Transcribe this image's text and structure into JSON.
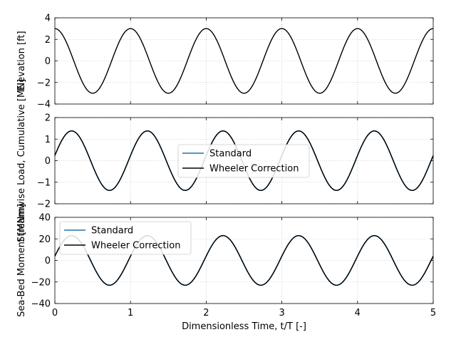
{
  "chart_data": [
    {
      "type": "line",
      "ylabel": "Elevation [ft]",
      "xlabel": "",
      "xlim": [
        0,
        5
      ],
      "ylim": [
        -4,
        4
      ],
      "xticks": [
        0,
        1,
        2,
        3,
        4,
        5
      ],
      "yticks": [
        -4,
        -2,
        0,
        2,
        4
      ],
      "yticklabels": [
        "−4",
        "−2",
        "0",
        "2",
        "4"
      ],
      "show_xticklabels": false,
      "grid": true,
      "legend": null,
      "series": [
        {
          "color": "#000000",
          "amplitude": 3.0,
          "period": 1.0,
          "phase_deg": 0,
          "function": "cos"
        }
      ]
    },
    {
      "type": "line",
      "ylabel": "Streamwise Load, Cumulative [MN]",
      "xlabel": "",
      "xlim": [
        0,
        5
      ],
      "ylim": [
        -2,
        2
      ],
      "xticks": [
        0,
        1,
        2,
        3,
        4,
        5
      ],
      "yticks": [
        -2,
        -1,
        0,
        1,
        2
      ],
      "yticklabels": [
        "−2",
        "−1",
        "0",
        "1",
        "2"
      ],
      "show_xticklabels": false,
      "grid": true,
      "legend": "center",
      "series": [
        {
          "name": "Standard",
          "color": "#1f77b4",
          "amplitude": 1.38,
          "period": 1.0,
          "phase_deg": -80,
          "function": "cos"
        },
        {
          "name": "Wheeler Correction",
          "color": "#000000",
          "amplitude": 1.38,
          "period": 1.0,
          "phase_deg": -80,
          "function": "cos"
        }
      ]
    },
    {
      "type": "line",
      "ylabel": "Sea-Bed Moment [MNm]",
      "xlabel": "Dimensionless Time, t/T [-]",
      "xlim": [
        0,
        5
      ],
      "ylim": [
        -40,
        40
      ],
      "xticks": [
        0,
        1,
        2,
        3,
        4,
        5
      ],
      "yticks": [
        -40,
        -20,
        0,
        20,
        40
      ],
      "yticklabels": [
        "−40",
        "−20",
        "0",
        "20",
        "40"
      ],
      "show_xticklabels": true,
      "grid": true,
      "legend": "upper-left",
      "series": [
        {
          "name": "Standard",
          "color": "#1f77b4",
          "amplitude": 23,
          "period": 1.0,
          "phase_deg": -80,
          "function": "cos"
        },
        {
          "name": "Wheeler Correction",
          "color": "#000000",
          "amplitude": 23,
          "period": 1.0,
          "phase_deg": -80,
          "function": "cos"
        }
      ]
    }
  ]
}
